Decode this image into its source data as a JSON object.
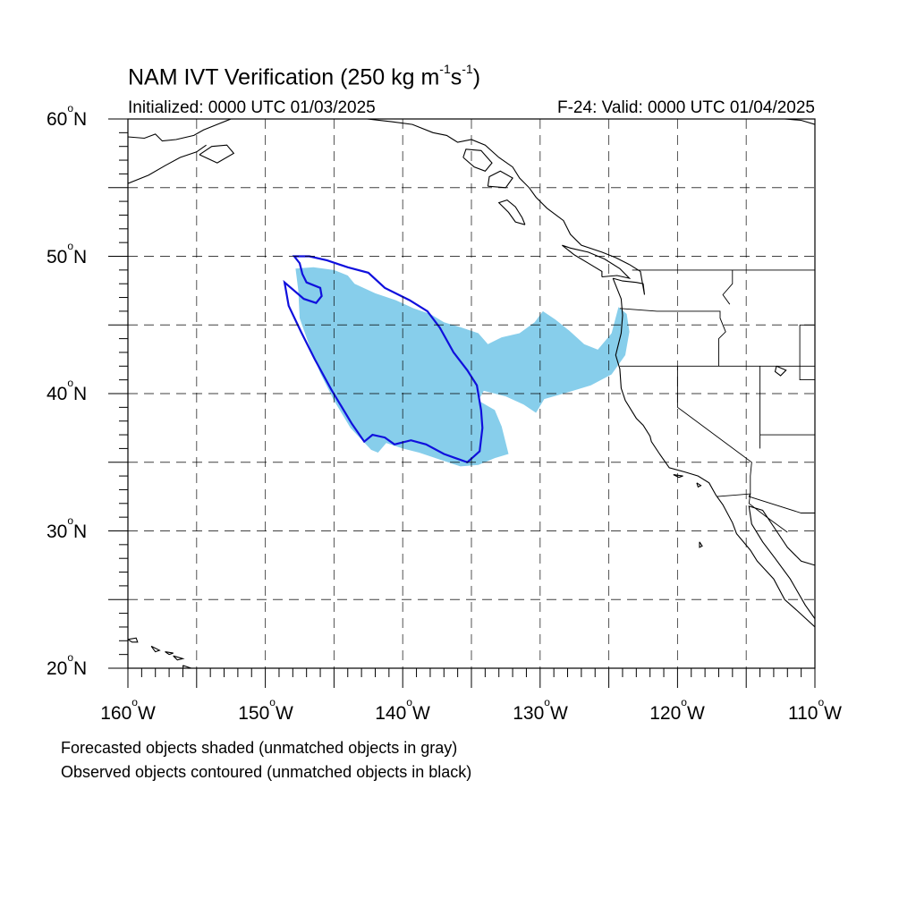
{
  "title": {
    "prefix": "NAM IVT Verification (250 kg m",
    "exp1": "-1",
    "mid": "s",
    "exp2": "-1",
    "suffix": ")"
  },
  "initialized": "Initialized: 0000 UTC 01/03/2025",
  "valid": "F-24: Valid: 0000 UTC 01/04/2025",
  "lat_labels": [
    "60",
    "50",
    "40",
    "30",
    "20"
  ],
  "lat_suffix": "N",
  "lon_labels": [
    "160",
    "150",
    "140",
    "130",
    "120",
    "110"
  ],
  "lon_suffix": "W",
  "degree_symbol": "o",
  "footer": {
    "line1": "Forecasted objects shaded (unmatched objects in gray)",
    "line2": "Observed objects contoured (unmatched objects in black)"
  },
  "colors": {
    "forecast_fill": "#87ceeb",
    "observed_contour": "#1010dd",
    "coastline": "#000000",
    "grid": "#000000"
  },
  "map_data": {
    "projection": "cylindrical equidistant",
    "lon_range": [
      -160,
      -110
    ],
    "lat_range": [
      20,
      60
    ],
    "grid_lons": [
      -155,
      -150,
      -145,
      -140,
      -135,
      -130,
      -125,
      -120,
      -115
    ],
    "grid_lats": [
      55,
      50,
      45,
      40,
      35,
      30,
      25
    ],
    "forecast_object": [
      [
        -147.8,
        49.1
      ],
      [
        -146.5,
        49.2
      ],
      [
        -145.0,
        49.0
      ],
      [
        -144.0,
        48.6
      ],
      [
        -143.5,
        48.0
      ],
      [
        -142.0,
        47.3
      ],
      [
        -140.5,
        46.8
      ],
      [
        -139.2,
        46.2
      ],
      [
        -138.0,
        45.8
      ],
      [
        -137.0,
        45.2
      ],
      [
        -135.7,
        44.8
      ],
      [
        -134.5,
        44.4
      ],
      [
        -133.8,
        43.6
      ],
      [
        -132.8,
        44.1
      ],
      [
        -131.5,
        44.4
      ],
      [
        -130.4,
        45.2
      ],
      [
        -129.8,
        46.0
      ],
      [
        -128.9,
        45.4
      ],
      [
        -127.9,
        44.6
      ],
      [
        -126.8,
        43.6
      ],
      [
        -125.8,
        43.2
      ],
      [
        -124.8,
        44.4
      ],
      [
        -124.3,
        46.3
      ],
      [
        -123.7,
        45.8
      ],
      [
        -123.5,
        44.5
      ],
      [
        -123.8,
        42.8
      ],
      [
        -124.8,
        41.4
      ],
      [
        -126.3,
        40.6
      ],
      [
        -128.3,
        40.0
      ],
      [
        -129.7,
        39.6
      ],
      [
        -130.3,
        38.6
      ],
      [
        -131.2,
        39.2
      ],
      [
        -132.5,
        39.8
      ],
      [
        -134.1,
        40.2
      ],
      [
        -134.5,
        39.5
      ],
      [
        -133.3,
        38.8
      ],
      [
        -132.8,
        37.6
      ],
      [
        -132.3,
        35.6
      ],
      [
        -133.3,
        35.3
      ],
      [
        -134.5,
        34.8
      ],
      [
        -135.8,
        34.7
      ],
      [
        -137.3,
        35.2
      ],
      [
        -138.8,
        35.7
      ],
      [
        -140.0,
        36.0
      ],
      [
        -141.2,
        36.4
      ],
      [
        -141.8,
        35.7
      ],
      [
        -142.3,
        35.9
      ],
      [
        -143.8,
        37.5
      ],
      [
        -145.0,
        39.5
      ],
      [
        -146.0,
        41.5
      ],
      [
        -146.8,
        43.5
      ],
      [
        -147.5,
        45.5
      ],
      [
        -147.6,
        47.5
      ],
      [
        -147.8,
        49.1
      ]
    ],
    "observed_object": [
      [
        -147.9,
        50.0
      ],
      [
        -146.8,
        50.0
      ],
      [
        -145.5,
        49.7
      ],
      [
        -144.0,
        49.2
      ],
      [
        -142.5,
        48.8
      ],
      [
        -141.3,
        47.7
      ],
      [
        -139.5,
        46.8
      ],
      [
        -138.2,
        46.0
      ],
      [
        -137.3,
        44.8
      ],
      [
        -136.3,
        43.0
      ],
      [
        -135.3,
        41.7
      ],
      [
        -134.6,
        40.6
      ],
      [
        -134.3,
        38.8
      ],
      [
        -134.2,
        37.5
      ],
      [
        -134.4,
        35.8
      ],
      [
        -135.3,
        35.0
      ],
      [
        -137.0,
        35.6
      ],
      [
        -138.3,
        36.3
      ],
      [
        -139.4,
        36.6
      ],
      [
        -140.6,
        36.3
      ],
      [
        -141.3,
        36.8
      ],
      [
        -142.2,
        37.0
      ],
      [
        -142.8,
        36.5
      ],
      [
        -143.7,
        37.8
      ],
      [
        -145.2,
        40.3
      ],
      [
        -146.4,
        42.5
      ],
      [
        -147.4,
        44.5
      ],
      [
        -148.3,
        46.4
      ],
      [
        -148.6,
        48.1
      ],
      [
        -147.2,
        46.9
      ],
      [
        -146.3,
        46.6
      ],
      [
        -145.9,
        47.1
      ],
      [
        -146.0,
        47.7
      ],
      [
        -147.0,
        48.1
      ],
      [
        -147.3,
        48.7
      ],
      [
        -147.5,
        49.5
      ],
      [
        -147.9,
        50.0
      ]
    ],
    "coastlines": [
      [
        [
          -124.7,
          48.4
        ],
        [
          -124.1,
          46.9
        ],
        [
          -124.0,
          45.7
        ],
        [
          -124.1,
          44.4
        ],
        [
          -124.5,
          42.8
        ],
        [
          -124.2,
          41.8
        ],
        [
          -124.1,
          40.4
        ],
        [
          -123.8,
          39.5
        ],
        [
          -123.0,
          38.2
        ],
        [
          -122.5,
          37.7
        ],
        [
          -122.0,
          36.9
        ],
        [
          -121.9,
          36.5
        ],
        [
          -121.3,
          35.6
        ],
        [
          -120.6,
          34.6
        ],
        [
          -119.5,
          34.3
        ],
        [
          -118.5,
          34.0
        ],
        [
          -117.7,
          33.5
        ],
        [
          -117.2,
          32.6
        ],
        [
          -116.7,
          31.9
        ],
        [
          -116.0,
          30.6
        ],
        [
          -115.7,
          29.8
        ],
        [
          -114.7,
          28.6
        ],
        [
          -114.2,
          27.8
        ],
        [
          -113.0,
          26.5
        ],
        [
          -112.2,
          25.0
        ],
        [
          -111.3,
          24.2
        ],
        [
          -110.0,
          23.0
        ]
      ],
      [
        [
          -110.0,
          27.5
        ],
        [
          -111.0,
          27.8
        ],
        [
          -112.0,
          28.8
        ],
        [
          -112.8,
          30.0
        ],
        [
          -113.8,
          31.5
        ],
        [
          -114.8,
          31.8
        ],
        [
          -114.6,
          30.5
        ],
        [
          -113.8,
          29.2
        ],
        [
          -112.9,
          28.0
        ],
        [
          -111.8,
          26.5
        ],
        [
          -110.7,
          24.6
        ],
        [
          -110.0,
          23.6
        ]
      ],
      [
        [
          -124.7,
          48.4
        ],
        [
          -124.0,
          48.2
        ],
        [
          -123.0,
          48.1
        ],
        [
          -122.5,
          48.0
        ],
        [
          -122.4,
          47.2
        ],
        [
          -122.7,
          48.9
        ],
        [
          -123.5,
          49.4
        ]
      ],
      [
        [
          -123.5,
          49.4
        ],
        [
          -124.5,
          49.9
        ],
        [
          -125.5,
          50.3
        ],
        [
          -127.0,
          50.8
        ],
        [
          -127.8,
          51.6
        ],
        [
          -128.3,
          52.6
        ],
        [
          -129.5,
          53.5
        ],
        [
          -130.3,
          54.3
        ],
        [
          -130.8,
          55.0
        ],
        [
          -131.5,
          55.7
        ],
        [
          -132.0,
          56.5
        ],
        [
          -133.0,
          57.2
        ],
        [
          -134.0,
          58.1
        ],
        [
          -135.0,
          58.5
        ],
        [
          -136.0,
          58.3
        ],
        [
          -136.8,
          58.8
        ],
        [
          -137.8,
          59.0
        ],
        [
          -139.3,
          59.6
        ],
        [
          -140.8,
          59.8
        ],
        [
          -142.6,
          60.0
        ],
        [
          -143.5,
          60.0
        ]
      ],
      [
        [
          -125.5,
          48.5
        ],
        [
          -124.4,
          48.6
        ],
        [
          -123.5,
          48.4
        ],
        [
          -124.2,
          49.1
        ],
        [
          -125.3,
          49.8
        ],
        [
          -126.5,
          50.3
        ],
        [
          -127.8,
          50.6
        ],
        [
          -128.4,
          50.8
        ],
        [
          -127.5,
          50.1
        ],
        [
          -126.5,
          49.5
        ],
        [
          -125.5,
          48.9
        ],
        [
          -125.5,
          48.5
        ]
      ],
      [
        [
          -131.1,
          52.3
        ],
        [
          -131.8,
          52.5
        ],
        [
          -132.3,
          53.2
        ],
        [
          -133.0,
          53.9
        ],
        [
          -132.4,
          54.1
        ],
        [
          -131.8,
          53.6
        ],
        [
          -131.3,
          52.8
        ],
        [
          -131.1,
          52.3
        ]
      ],
      [
        [
          -135.6,
          57.2
        ],
        [
          -134.8,
          56.5
        ],
        [
          -134.0,
          56.2
        ],
        [
          -133.5,
          56.8
        ],
        [
          -134.3,
          57.7
        ],
        [
          -135.4,
          57.8
        ],
        [
          -135.6,
          57.2
        ]
      ],
      [
        [
          -133.8,
          55.1
        ],
        [
          -132.5,
          55.0
        ],
        [
          -132.0,
          55.7
        ],
        [
          -132.9,
          56.2
        ],
        [
          -133.7,
          55.8
        ],
        [
          -133.8,
          55.1
        ]
      ],
      [
        [
          -160.0,
          58.7
        ],
        [
          -158.8,
          58.6
        ],
        [
          -158.0,
          58.9
        ],
        [
          -157.5,
          58.4
        ],
        [
          -156.5,
          58.5
        ],
        [
          -155.2,
          58.8
        ],
        [
          -154.5,
          59.2
        ],
        [
          -153.5,
          59.6
        ],
        [
          -152.5,
          60.0
        ]
      ],
      [
        [
          -160.0,
          55.3
        ],
        [
          -158.5,
          55.9
        ],
        [
          -157.3,
          56.6
        ],
        [
          -156.2,
          57.2
        ],
        [
          -155.0,
          57.6
        ],
        [
          -154.3,
          58.1
        ]
      ],
      [
        [
          -154.8,
          57.4
        ],
        [
          -153.5,
          56.8
        ],
        [
          -152.3,
          57.5
        ],
        [
          -152.8,
          58.1
        ],
        [
          -153.9,
          58.0
        ],
        [
          -154.8,
          57.4
        ]
      ],
      [
        [
          -110.0,
          59.6
        ],
        [
          -111.0,
          59.9
        ],
        [
          -112.2,
          60.0
        ]
      ],
      [
        [
          -160.0,
          22.1
        ],
        [
          -159.4,
          22.2
        ],
        [
          -159.3,
          21.9
        ],
        [
          -159.7,
          21.9
        ],
        [
          -160.0,
          22.1
        ]
      ],
      [
        [
          -158.3,
          21.6
        ],
        [
          -157.7,
          21.3
        ],
        [
          -158.0,
          21.2
        ],
        [
          -158.3,
          21.6
        ]
      ],
      [
        [
          -157.3,
          21.2
        ],
        [
          -156.7,
          21.1
        ],
        [
          -157.0,
          21.0
        ],
        [
          -157.3,
          21.2
        ]
      ],
      [
        [
          -156.7,
          20.9
        ],
        [
          -156.0,
          20.7
        ],
        [
          -156.4,
          20.6
        ],
        [
          -156.7,
          20.9
        ]
      ],
      [
        [
          -156.0,
          20.2
        ],
        [
          -155.1,
          19.9
        ],
        [
          -155.0,
          19.4
        ],
        [
          -155.6,
          19.1
        ],
        [
          -155.9,
          19.6
        ],
        [
          -156.0,
          20.2
        ]
      ],
      [
        [
          -120.3,
          34.1
        ],
        [
          -119.6,
          34.0
        ],
        [
          -119.9,
          33.9
        ],
        [
          -120.3,
          34.1
        ]
      ],
      [
        [
          -118.6,
          33.5
        ],
        [
          -118.3,
          33.3
        ],
        [
          -118.5,
          33.2
        ],
        [
          -118.6,
          33.5
        ]
      ],
      [
        [
          -118.4,
          29.2
        ],
        [
          -118.2,
          28.9
        ],
        [
          -118.4,
          28.8
        ],
        [
          -118.4,
          29.2
        ]
      ],
      [
        [
          -112.8,
          42.0
        ],
        [
          -112.1,
          41.7
        ],
        [
          -112.5,
          41.3
        ],
        [
          -112.9,
          41.6
        ],
        [
          -112.8,
          42.0
        ]
      ]
    ],
    "borders": [
      [
        [
          -123.3,
          49.0
        ],
        [
          -110.0,
          49.0
        ]
      ],
      [
        [
          -124.2,
          46.2
        ],
        [
          -121.5,
          46.0
        ],
        [
          -119.0,
          46.0
        ],
        [
          -116.9,
          46.0
        ],
        [
          -116.9,
          45.5
        ],
        [
          -116.5,
          44.5
        ],
        [
          -117.0,
          44.0
        ],
        [
          -117.0,
          42.0
        ]
      ],
      [
        [
          -124.2,
          42.0
        ],
        [
          -110.0,
          42.0
        ]
      ],
      [
        [
          -120.0,
          42.0
        ],
        [
          -120.0,
          39.0
        ],
        [
          -114.6,
          35.0
        ],
        [
          -114.7,
          34.0
        ],
        [
          -114.7,
          32.7
        ]
      ],
      [
        [
          -117.1,
          32.5
        ],
        [
          -114.7,
          32.7
        ],
        [
          -114.8,
          32.5
        ],
        [
          -111.0,
          31.3
        ],
        [
          -110.0,
          31.3
        ]
      ],
      [
        [
          -116.0,
          49.0
        ],
        [
          -116.0,
          48.0
        ],
        [
          -116.7,
          47.2
        ],
        [
          -116.2,
          46.5
        ]
      ],
      [
        [
          -114.0,
          42.0
        ],
        [
          -114.0,
          37.0
        ],
        [
          -114.0,
          36.0
        ]
      ],
      [
        [
          -114.0,
          37.0
        ],
        [
          -110.0,
          37.0
        ]
      ],
      [
        [
          -111.1,
          45.0
        ],
        [
          -111.1,
          41.0
        ],
        [
          -110.0,
          41.0
        ]
      ],
      [
        [
          -110.0,
          45.0
        ],
        [
          -111.1,
          45.0
        ]
      ],
      [
        [
          -114.7,
          32.7
        ],
        [
          -114.8,
          32.0
        ],
        [
          -113.5,
          31.0
        ],
        [
          -112.0,
          29.9
        ]
      ]
    ]
  }
}
